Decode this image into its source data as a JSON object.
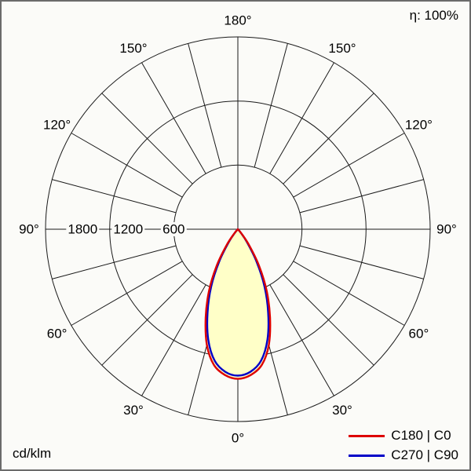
{
  "chart_data": {
    "type": "polar",
    "subtype": "luminous-intensity-distribution",
    "unit": "cd/klm",
    "efficiency": "η: 100%",
    "max_value": 1800,
    "grid_on": true,
    "spoke_step_deg": 15,
    "rings": [
      {
        "value": 600,
        "label": "600"
      },
      {
        "value": 1200,
        "label": "1200"
      },
      {
        "value": 1800,
        "label": "1800"
      }
    ],
    "angle_labels": [
      {
        "gamma": 0,
        "text": "0°"
      },
      {
        "gamma": 30,
        "text": "30°"
      },
      {
        "gamma": 60,
        "text": "60°"
      },
      {
        "gamma": 90,
        "text": "90°"
      },
      {
        "gamma": 120,
        "text": "120°"
      },
      {
        "gamma": 150,
        "text": "150°"
      },
      {
        "gamma": 180,
        "text": "180°"
      }
    ],
    "beam_fill_color": "#ffffc8",
    "series": [
      {
        "name": "C180 | C0",
        "color": "#dd0000",
        "gamma_deg": [
          0,
          5,
          10,
          15,
          20,
          25,
          30,
          35,
          40,
          45
        ],
        "values_cd_per_klm": [
          1400,
          1370,
          1290,
          1120,
          880,
          640,
          400,
          190,
          60,
          0
        ]
      },
      {
        "name": "C270 | C90",
        "color": "#0000c8",
        "gamma_deg": [
          0,
          5,
          10,
          15,
          20,
          25,
          30,
          35,
          40,
          45
        ],
        "values_cd_per_klm": [
          1370,
          1340,
          1250,
          1070,
          830,
          590,
          350,
          150,
          40,
          0
        ]
      }
    ]
  },
  "legend": [
    {
      "label": "C180 | C0",
      "color": "#dd0000"
    },
    {
      "label": "C270 | C90",
      "color": "#0000c8"
    }
  ]
}
